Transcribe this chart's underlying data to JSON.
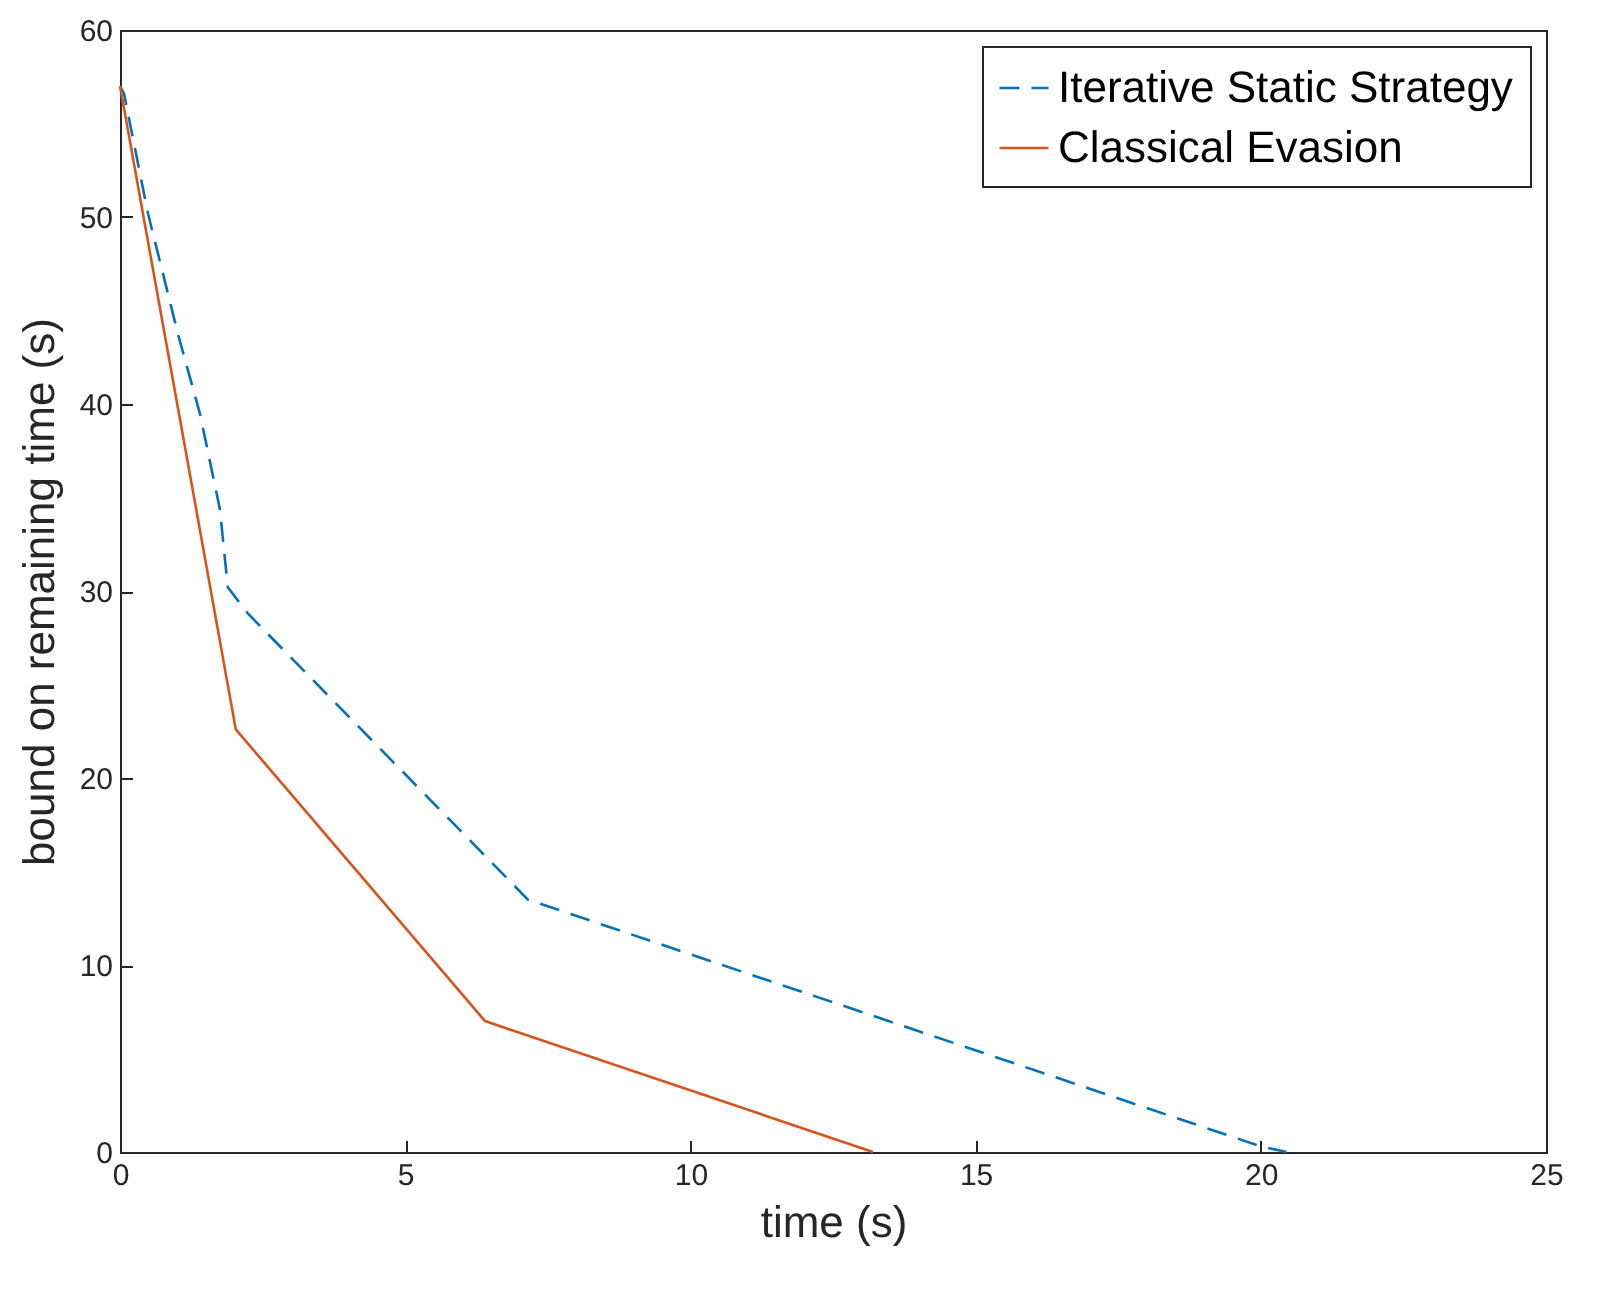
{
  "chart_data": {
    "type": "line",
    "xlabel": "time (s)",
    "ylabel": "bound on remaining time (s)",
    "xlim": [
      0,
      25
    ],
    "ylim": [
      0,
      60
    ],
    "xticks": [
      0,
      5,
      10,
      15,
      20,
      25
    ],
    "yticks": [
      0,
      10,
      20,
      30,
      40,
      50,
      60
    ],
    "grid": false,
    "legend": "top right",
    "series": [
      {
        "name": "Iterative Static Strategy",
        "color": "#0072bd",
        "line_style": "dashed",
        "x": [
          0,
          0.07,
          0.49,
          1.02,
          1.4,
          1.75,
          1.89,
          2.24,
          7.15,
          20.0,
          20.45
        ],
        "values": [
          57,
          56.6,
          50.2,
          43.7,
          39.5,
          34.4,
          30.2,
          28.8,
          13.5,
          0.3,
          0
        ]
      },
      {
        "name": "Classical Evasion",
        "color": "#d95319",
        "line_style": "solid",
        "x": [
          0,
          2.03,
          6.4,
          13.2
        ],
        "values": [
          57,
          22.6,
          7,
          0
        ]
      }
    ]
  }
}
